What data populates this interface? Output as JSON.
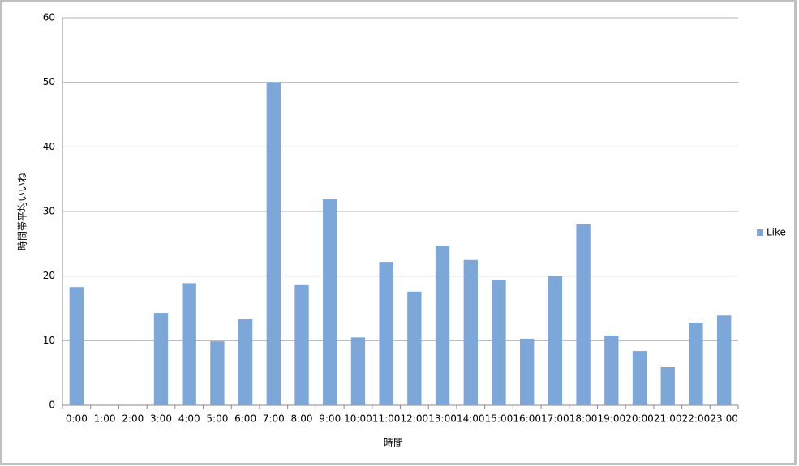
{
  "chart_data": {
    "type": "bar",
    "x_label": "時間",
    "y_label": "時間帯平均いいね",
    "categories": [
      "0:00",
      "1:00",
      "2:00",
      "3:00",
      "4:00",
      "5:00",
      "6:00",
      "7:00",
      "8:00",
      "9:00",
      "10:00",
      "11:00",
      "12:00",
      "13:00",
      "14:00",
      "15:00",
      "16:00",
      "17:00",
      "18:00",
      "19:00",
      "20:00",
      "21:00",
      "22:00",
      "23:00"
    ],
    "series": [
      {
        "name": "Like",
        "color": "#7da6d9",
        "values": [
          18.3,
          0,
          0,
          14.3,
          18.9,
          9.9,
          13.3,
          50,
          18.6,
          31.9,
          10.5,
          22.2,
          17.6,
          24.7,
          22.5,
          19.4,
          10.3,
          20,
          28,
          10.8,
          8.4,
          5.9,
          12.8,
          13.9
        ]
      }
    ],
    "ylim": [
      0,
      60
    ],
    "yticks": [
      0,
      10,
      20,
      30,
      40,
      50,
      60
    ],
    "grid": true,
    "legend": "right"
  }
}
